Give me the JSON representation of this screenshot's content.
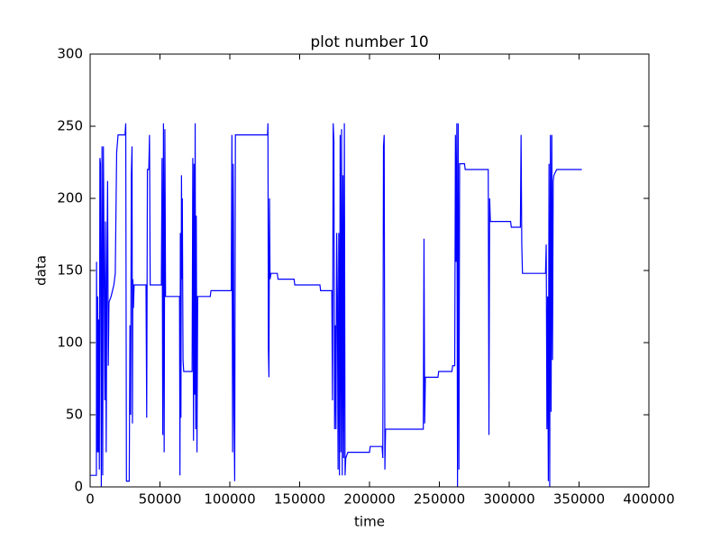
{
  "chart_data": {
    "type": "line",
    "title": "plot number 10",
    "x_label": "time",
    "y_label": "data",
    "color": "#0000ff",
    "xlim": [
      0,
      400000
    ],
    "ylim": [
      0,
      300
    ],
    "xticks": [
      0,
      50000,
      100000,
      150000,
      200000,
      250000,
      300000,
      350000,
      400000
    ],
    "yticks": [
      0,
      50,
      100,
      150,
      200,
      250,
      300
    ],
    "x": [
      0,
      4500,
      4600,
      5000,
      5400,
      5800,
      6200,
      6600,
      7000,
      7400,
      8000,
      8500,
      9000,
      9500,
      10000,
      10500,
      11000,
      11500,
      12000,
      12500,
      13000,
      13500,
      15000,
      17000,
      18000,
      19000,
      20000,
      25000,
      25500,
      26000,
      28000,
      28500,
      29000,
      29500,
      30000,
      30300,
      30600,
      31000,
      31500,
      40000,
      40500,
      41000,
      42000,
      42500,
      43000,
      51000,
      51500,
      52000,
      52500,
      53000,
      53500,
      54000,
      64000,
      64300,
      64600,
      65000,
      65400,
      65800,
      66000,
      66500,
      67000,
      73000,
      73500,
      74000,
      74400,
      74800,
      75200,
      75600,
      76000,
      76500,
      77000,
      86000,
      86500,
      101000,
      101500,
      102000,
      102500,
      103000,
      103500,
      104000,
      127000,
      127300,
      127600,
      128000,
      128400,
      128800,
      129500,
      134000,
      134500,
      146000,
      146500,
      164500,
      165000,
      173000,
      173500,
      174000,
      174500,
      175000,
      175500,
      176000,
      176500,
      177000,
      177500,
      178000,
      178500,
      179000,
      179500,
      180000,
      180500,
      181000,
      181500,
      182000,
      182500,
      183000,
      184500,
      200000,
      200500,
      209000,
      209500,
      210000,
      210500,
      211000,
      211500,
      238500,
      239000,
      239500,
      240000,
      249000,
      249500,
      259000,
      259500,
      261000,
      261500,
      262000,
      262500,
      263000,
      263500,
      264000,
      264500,
      268000,
      268500,
      285000,
      285500,
      286000,
      286500,
      301000,
      301500,
      308000,
      308500,
      309000,
      309500,
      326000,
      326500,
      327000,
      327500,
      328000,
      328500,
      329000,
      329500,
      330000,
      330500,
      331000,
      331500,
      332000,
      334000,
      352000
    ],
    "values": [
      8,
      8,
      156,
      24,
      132,
      24,
      116,
      12,
      228,
      224,
      0,
      236,
      8,
      236,
      156,
      60,
      184,
      24,
      150,
      212,
      84,
      128,
      132,
      140,
      148,
      232,
      244,
      244,
      252,
      4,
      4,
      112,
      50,
      216,
      236,
      44,
      144,
      124,
      140,
      140,
      48,
      220,
      220,
      244,
      140,
      140,
      228,
      36,
      252,
      24,
      248,
      132,
      132,
      8,
      176,
      48,
      216,
      144,
      200,
      88,
      80,
      80,
      228,
      32,
      224,
      64,
      252,
      40,
      188,
      24,
      132,
      132,
      136,
      136,
      244,
      24,
      224,
      52,
      4,
      244,
      244,
      252,
      96,
      76,
      200,
      144,
      148,
      148,
      144,
      144,
      140,
      140,
      136,
      136,
      60,
      252,
      240,
      40,
      112,
      40,
      176,
      132,
      12,
      176,
      8,
      244,
      24,
      248,
      8,
      216,
      20,
      252,
      8,
      20,
      24,
      24,
      28,
      28,
      20,
      236,
      244,
      12,
      40,
      40,
      172,
      44,
      76,
      76,
      80,
      80,
      84,
      84,
      244,
      156,
      252,
      0,
      252,
      12,
      224,
      224,
      220,
      220,
      36,
      200,
      184,
      184,
      180,
      180,
      244,
      168,
      148,
      148,
      168,
      40,
      132,
      4,
      224,
      0,
      244,
      52,
      244,
      88,
      212,
      216,
      220,
      220
    ]
  }
}
